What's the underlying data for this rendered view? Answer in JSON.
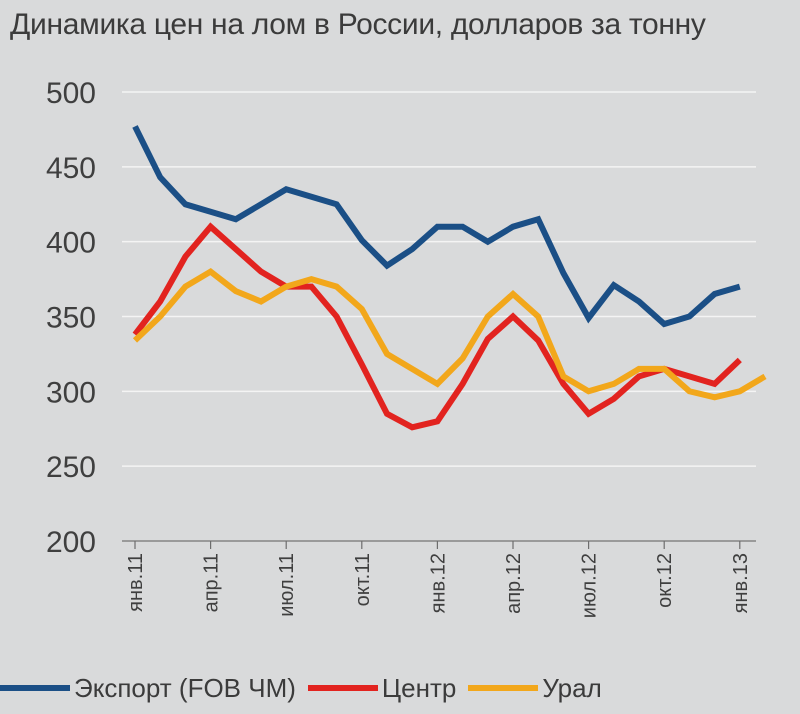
{
  "title": "Динамика цен на лом в России, долларов за тонну",
  "chart_data": {
    "type": "line",
    "title": "Динамика цен на лом в России, долларов за тонну",
    "xlabel": "",
    "ylabel": "",
    "ylim": [
      200,
      500
    ],
    "y_ticks": [
      "500",
      "450",
      "400",
      "350",
      "300",
      "250",
      "200"
    ],
    "x_tick_labels": [
      "янв.11",
      "апр.11",
      "июл.11",
      "окт.11",
      "янв.12",
      "апр.12",
      "июл.12",
      "окт.12",
      "янв.13"
    ],
    "x": [
      "янв.11",
      "фев.11",
      "мар.11",
      "апр.11",
      "май.11",
      "июн.11",
      "июл.11",
      "авг.11",
      "сен.11",
      "окт.11",
      "ноя.11",
      "дек.11",
      "янв.12",
      "фев.12",
      "мар.12",
      "апр.12",
      "май.12",
      "июн.12",
      "июл.12",
      "авг.12",
      "сен.12",
      "окт.12",
      "ноя.12",
      "дек.12",
      "янв.13",
      "фев.13"
    ],
    "grid": "horizontal",
    "legend": "bottom",
    "series": [
      {
        "name": "Экспорт (FOB ЧМ)",
        "color": "#1b4f86",
        "values": [
          477,
          443,
          425,
          420,
          415,
          425,
          435,
          430,
          425,
          401,
          384,
          395,
          410,
          410,
          400,
          410,
          415,
          379,
          349,
          371,
          360,
          345,
          350,
          365,
          370,
          null
        ]
      },
      {
        "name": "Центр",
        "color": "#e2231f",
        "values": [
          338,
          360,
          390,
          410,
          395,
          380,
          370,
          370,
          350,
          318,
          285,
          276,
          280,
          305,
          335,
          350,
          334,
          305,
          285,
          295,
          310,
          315,
          310,
          305,
          321,
          null
        ]
      },
      {
        "name": "Урал",
        "color": "#f2a71b",
        "values": [
          334,
          350,
          370,
          380,
          367,
          360,
          370,
          375,
          370,
          355,
          325,
          315,
          305,
          322,
          350,
          365,
          350,
          310,
          300,
          305,
          315,
          315,
          300,
          296,
          300,
          310
        ]
      }
    ]
  }
}
